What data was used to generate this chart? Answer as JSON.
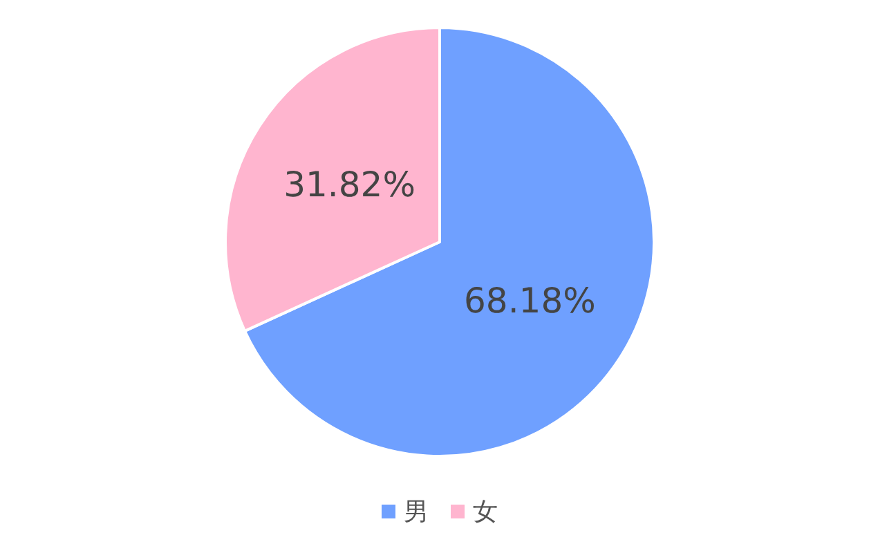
{
  "chart_data": {
    "type": "pie",
    "categories": [
      "男",
      "女"
    ],
    "values": [
      68.18,
      31.82
    ],
    "colors": [
      "#6fa0ff",
      "#ffb5cf"
    ],
    "value_labels": [
      "68.18%",
      "31.82%"
    ],
    "legend": "bottom"
  }
}
